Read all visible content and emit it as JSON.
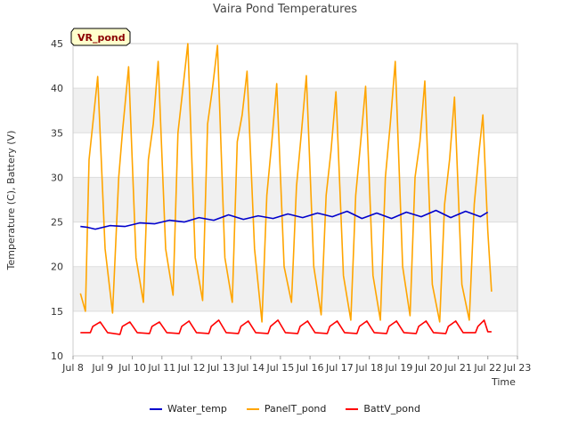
{
  "chart_data": {
    "type": "line",
    "title": "Vaira Pond Temperatures",
    "badge": "VR_pond",
    "xlabel": "Time",
    "ylabel": "Temperature (C), Battery (V)",
    "xlim": [
      "2023-07-08",
      "2023-07-23"
    ],
    "ylim": [
      10,
      45
    ],
    "x_ticks": [
      "Jul 8",
      "Jul 9",
      "Jul 10",
      "Jul 11",
      "Jul 12",
      "Jul 13",
      "Jul 14",
      "Jul 15",
      "Jul 16",
      "Jul 17",
      "Jul 18",
      "Jul 19",
      "Jul 20",
      "Jul 21",
      "Jul 22",
      "Jul 23"
    ],
    "y_ticks": [
      10,
      15,
      20,
      25,
      30,
      35,
      40,
      45
    ],
    "grid": true,
    "legend_position": "bottom",
    "series": [
      {
        "name": "Water_temp",
        "color": "#0000cc",
        "points": [
          [
            "2023-07-08 06:00",
            24.5
          ],
          [
            "2023-07-08 12:00",
            24.4
          ],
          [
            "2023-07-08 18:00",
            24.2
          ],
          [
            "2023-07-09 06:00",
            24.6
          ],
          [
            "2023-07-09 18:00",
            24.5
          ],
          [
            "2023-07-10 06:00",
            24.9
          ],
          [
            "2023-07-10 18:00",
            24.8
          ],
          [
            "2023-07-11 06:00",
            25.2
          ],
          [
            "2023-07-11 18:00",
            25.0
          ],
          [
            "2023-07-12 06:00",
            25.5
          ],
          [
            "2023-07-12 18:00",
            25.2
          ],
          [
            "2023-07-13 06:00",
            25.8
          ],
          [
            "2023-07-13 18:00",
            25.3
          ],
          [
            "2023-07-14 06:00",
            25.7
          ],
          [
            "2023-07-14 18:00",
            25.4
          ],
          [
            "2023-07-15 06:00",
            25.9
          ],
          [
            "2023-07-15 18:00",
            25.5
          ],
          [
            "2023-07-16 06:00",
            26.0
          ],
          [
            "2023-07-16 18:00",
            25.6
          ],
          [
            "2023-07-17 06:00",
            26.2
          ],
          [
            "2023-07-17 18:00",
            25.4
          ],
          [
            "2023-07-18 06:00",
            26.0
          ],
          [
            "2023-07-18 18:00",
            25.4
          ],
          [
            "2023-07-19 06:00",
            26.1
          ],
          [
            "2023-07-19 18:00",
            25.6
          ],
          [
            "2023-07-20 06:00",
            26.3
          ],
          [
            "2023-07-20 18:00",
            25.5
          ],
          [
            "2023-07-21 06:00",
            26.2
          ],
          [
            "2023-07-21 18:00",
            25.6
          ],
          [
            "2023-07-22 00:00",
            26.1
          ]
        ]
      },
      {
        "name": "PanelT_pond",
        "color": "#ffa500",
        "points": [
          [
            "2023-07-08 06:00",
            17.0
          ],
          [
            "2023-07-08 10:00",
            15.0
          ],
          [
            "2023-07-08 13:00",
            32.0
          ],
          [
            "2023-07-08 16:00",
            36.0
          ],
          [
            "2023-07-08 20:00",
            41.3
          ],
          [
            "2023-07-09 02:00",
            22.0
          ],
          [
            "2023-07-09 08:00",
            14.8
          ],
          [
            "2023-07-09 13:00",
            30.0
          ],
          [
            "2023-07-09 16:00",
            35.0
          ],
          [
            "2023-07-09 21:00",
            42.4
          ],
          [
            "2023-07-10 03:00",
            21.0
          ],
          [
            "2023-07-10 09:00",
            16.0
          ],
          [
            "2023-07-10 13:00",
            32.0
          ],
          [
            "2023-07-10 17:00",
            36.0
          ],
          [
            "2023-07-10 21:00",
            43.0
          ],
          [
            "2023-07-11 03:00",
            22.0
          ],
          [
            "2023-07-11 09:00",
            16.8
          ],
          [
            "2023-07-11 13:00",
            35.0
          ],
          [
            "2023-07-11 17:00",
            40.0
          ],
          [
            "2023-07-11 21:00",
            45.0
          ],
          [
            "2023-07-12 03:00",
            21.0
          ],
          [
            "2023-07-12 09:00",
            16.2
          ],
          [
            "2023-07-12 13:00",
            36.0
          ],
          [
            "2023-07-12 17:00",
            40.0
          ],
          [
            "2023-07-12 21:00",
            44.8
          ],
          [
            "2023-07-13 03:00",
            21.0
          ],
          [
            "2023-07-13 09:00",
            16.0
          ],
          [
            "2023-07-13 13:00",
            34.0
          ],
          [
            "2023-07-13 17:00",
            37.0
          ],
          [
            "2023-07-13 21:00",
            41.9
          ],
          [
            "2023-07-14 03:00",
            22.0
          ],
          [
            "2023-07-14 09:00",
            13.8
          ],
          [
            "2023-07-14 13:00",
            28.0
          ],
          [
            "2023-07-14 17:00",
            34.0
          ],
          [
            "2023-07-14 21:00",
            40.5
          ],
          [
            "2023-07-15 03:00",
            20.0
          ],
          [
            "2023-07-15 09:00",
            16.0
          ],
          [
            "2023-07-15 13:00",
            29.0
          ],
          [
            "2023-07-15 17:00",
            35.0
          ],
          [
            "2023-07-15 21:00",
            41.4
          ],
          [
            "2023-07-16 03:00",
            20.0
          ],
          [
            "2023-07-16 09:00",
            14.6
          ],
          [
            "2023-07-16 13:00",
            28.0
          ],
          [
            "2023-07-16 17:00",
            33.0
          ],
          [
            "2023-07-16 21:00",
            39.6
          ],
          [
            "2023-07-17 03:00",
            19.0
          ],
          [
            "2023-07-17 09:00",
            14.0
          ],
          [
            "2023-07-17 13:00",
            28.0
          ],
          [
            "2023-07-17 17:00",
            34.0
          ],
          [
            "2023-07-17 21:00",
            40.2
          ],
          [
            "2023-07-18 03:00",
            19.0
          ],
          [
            "2023-07-18 09:00",
            14.0
          ],
          [
            "2023-07-18 13:00",
            30.0
          ],
          [
            "2023-07-18 17:00",
            36.0
          ],
          [
            "2023-07-18 21:00",
            43.0
          ],
          [
            "2023-07-19 03:00",
            20.0
          ],
          [
            "2023-07-19 09:00",
            14.5
          ],
          [
            "2023-07-19 13:00",
            30.0
          ],
          [
            "2023-07-19 17:00",
            34.0
          ],
          [
            "2023-07-19 21:00",
            40.8
          ],
          [
            "2023-07-20 03:00",
            18.0
          ],
          [
            "2023-07-20 09:00",
            13.8
          ],
          [
            "2023-07-20 13:00",
            27.0
          ],
          [
            "2023-07-20 17:00",
            32.0
          ],
          [
            "2023-07-20 21:00",
            39.0
          ],
          [
            "2023-07-21 03:00",
            18.0
          ],
          [
            "2023-07-21 09:00",
            14.0
          ],
          [
            "2023-07-21 13:00",
            27.0
          ],
          [
            "2023-07-21 17:00",
            33.0
          ],
          [
            "2023-07-21 20:00",
            37.0
          ],
          [
            "2023-07-22 00:00",
            24.0
          ],
          [
            "2023-07-22 03:00",
            17.2
          ]
        ]
      },
      {
        "name": "BattV_pond",
        "color": "#ff0000",
        "points": [
          [
            "2023-07-08 06:00",
            12.6
          ],
          [
            "2023-07-08 14:00",
            12.6
          ],
          [
            "2023-07-08 16:00",
            13.3
          ],
          [
            "2023-07-08 22:00",
            13.8
          ],
          [
            "2023-07-09 04:00",
            12.6
          ],
          [
            "2023-07-09 14:00",
            12.4
          ],
          [
            "2023-07-09 16:00",
            13.3
          ],
          [
            "2023-07-09 22:00",
            13.8
          ],
          [
            "2023-07-10 04:00",
            12.6
          ],
          [
            "2023-07-10 14:00",
            12.5
          ],
          [
            "2023-07-10 16:00",
            13.3
          ],
          [
            "2023-07-10 22:00",
            13.8
          ],
          [
            "2023-07-11 04:00",
            12.6
          ],
          [
            "2023-07-11 14:00",
            12.5
          ],
          [
            "2023-07-11 16:00",
            13.3
          ],
          [
            "2023-07-11 22:00",
            13.9
          ],
          [
            "2023-07-12 04:00",
            12.6
          ],
          [
            "2023-07-12 14:00",
            12.5
          ],
          [
            "2023-07-12 16:00",
            13.3
          ],
          [
            "2023-07-12 22:00",
            14.0
          ],
          [
            "2023-07-13 04:00",
            12.6
          ],
          [
            "2023-07-13 14:00",
            12.5
          ],
          [
            "2023-07-13 16:00",
            13.3
          ],
          [
            "2023-07-13 22:00",
            13.9
          ],
          [
            "2023-07-14 04:00",
            12.6
          ],
          [
            "2023-07-14 14:00",
            12.5
          ],
          [
            "2023-07-14 16:00",
            13.3
          ],
          [
            "2023-07-14 22:00",
            14.0
          ],
          [
            "2023-07-15 04:00",
            12.6
          ],
          [
            "2023-07-15 14:00",
            12.5
          ],
          [
            "2023-07-15 16:00",
            13.3
          ],
          [
            "2023-07-15 22:00",
            13.9
          ],
          [
            "2023-07-16 04:00",
            12.6
          ],
          [
            "2023-07-16 14:00",
            12.5
          ],
          [
            "2023-07-16 16:00",
            13.3
          ],
          [
            "2023-07-16 22:00",
            13.9
          ],
          [
            "2023-07-17 04:00",
            12.6
          ],
          [
            "2023-07-17 14:00",
            12.5
          ],
          [
            "2023-07-17 16:00",
            13.3
          ],
          [
            "2023-07-17 22:00",
            13.9
          ],
          [
            "2023-07-18 04:00",
            12.6
          ],
          [
            "2023-07-18 14:00",
            12.5
          ],
          [
            "2023-07-18 16:00",
            13.3
          ],
          [
            "2023-07-18 22:00",
            13.9
          ],
          [
            "2023-07-19 04:00",
            12.6
          ],
          [
            "2023-07-19 14:00",
            12.5
          ],
          [
            "2023-07-19 16:00",
            13.3
          ],
          [
            "2023-07-19 22:00",
            13.9
          ],
          [
            "2023-07-20 04:00",
            12.6
          ],
          [
            "2023-07-20 14:00",
            12.5
          ],
          [
            "2023-07-20 16:00",
            13.3
          ],
          [
            "2023-07-20 22:00",
            13.9
          ],
          [
            "2023-07-21 04:00",
            12.6
          ],
          [
            "2023-07-21 14:00",
            12.6
          ],
          [
            "2023-07-21 16:00",
            13.3
          ],
          [
            "2023-07-21 21:00",
            14.0
          ],
          [
            "2023-07-22 00:00",
            12.7
          ],
          [
            "2023-07-22 03:00",
            12.7
          ]
        ]
      }
    ]
  }
}
